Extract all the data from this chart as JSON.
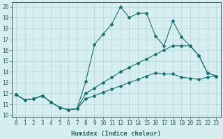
{
  "xlabel": "Humidex (Indice chaleur)",
  "bg_color": "#d6eef0",
  "grid_color": "#b8d8dc",
  "line_color": "#1a7070",
  "x_ticks": [
    0,
    1,
    2,
    3,
    4,
    5,
    6,
    7,
    8,
    9,
    10,
    11,
    12,
    13,
    14,
    15,
    16,
    17,
    18,
    19,
    20,
    21,
    22,
    23
  ],
  "y_ticks": [
    10,
    11,
    12,
    13,
    14,
    15,
    16,
    17,
    18,
    19,
    20
  ],
  "xlim": [
    -0.5,
    23.5
  ],
  "ylim": [
    9.8,
    20.4
  ],
  "series": [
    [
      11.9,
      11.4,
      11.5,
      11.8,
      11.2,
      10.7,
      10.5,
      10.6,
      13.1,
      16.5,
      17.5,
      18.4,
      20.0,
      19.0,
      19.4,
      19.4,
      17.3,
      16.4,
      18.7,
      17.2,
      16.4,
      15.5,
      13.9,
      13.6
    ],
    [
      11.9,
      11.4,
      11.5,
      11.8,
      11.2,
      10.7,
      10.5,
      10.6,
      12.0,
      12.5,
      13.0,
      13.5,
      14.0,
      14.4,
      14.8,
      15.2,
      15.6,
      16.0,
      16.4,
      16.4,
      16.4,
      15.5,
      13.9,
      13.6
    ],
    [
      11.9,
      11.4,
      11.5,
      11.8,
      11.2,
      10.7,
      10.5,
      10.6,
      11.5,
      11.8,
      12.1,
      12.4,
      12.7,
      13.0,
      13.3,
      13.6,
      13.9,
      13.8,
      13.8,
      13.5,
      13.4,
      13.3,
      13.5,
      13.6
    ]
  ],
  "tick_fontsize": 5.5,
  "xlabel_fontsize": 6.5
}
